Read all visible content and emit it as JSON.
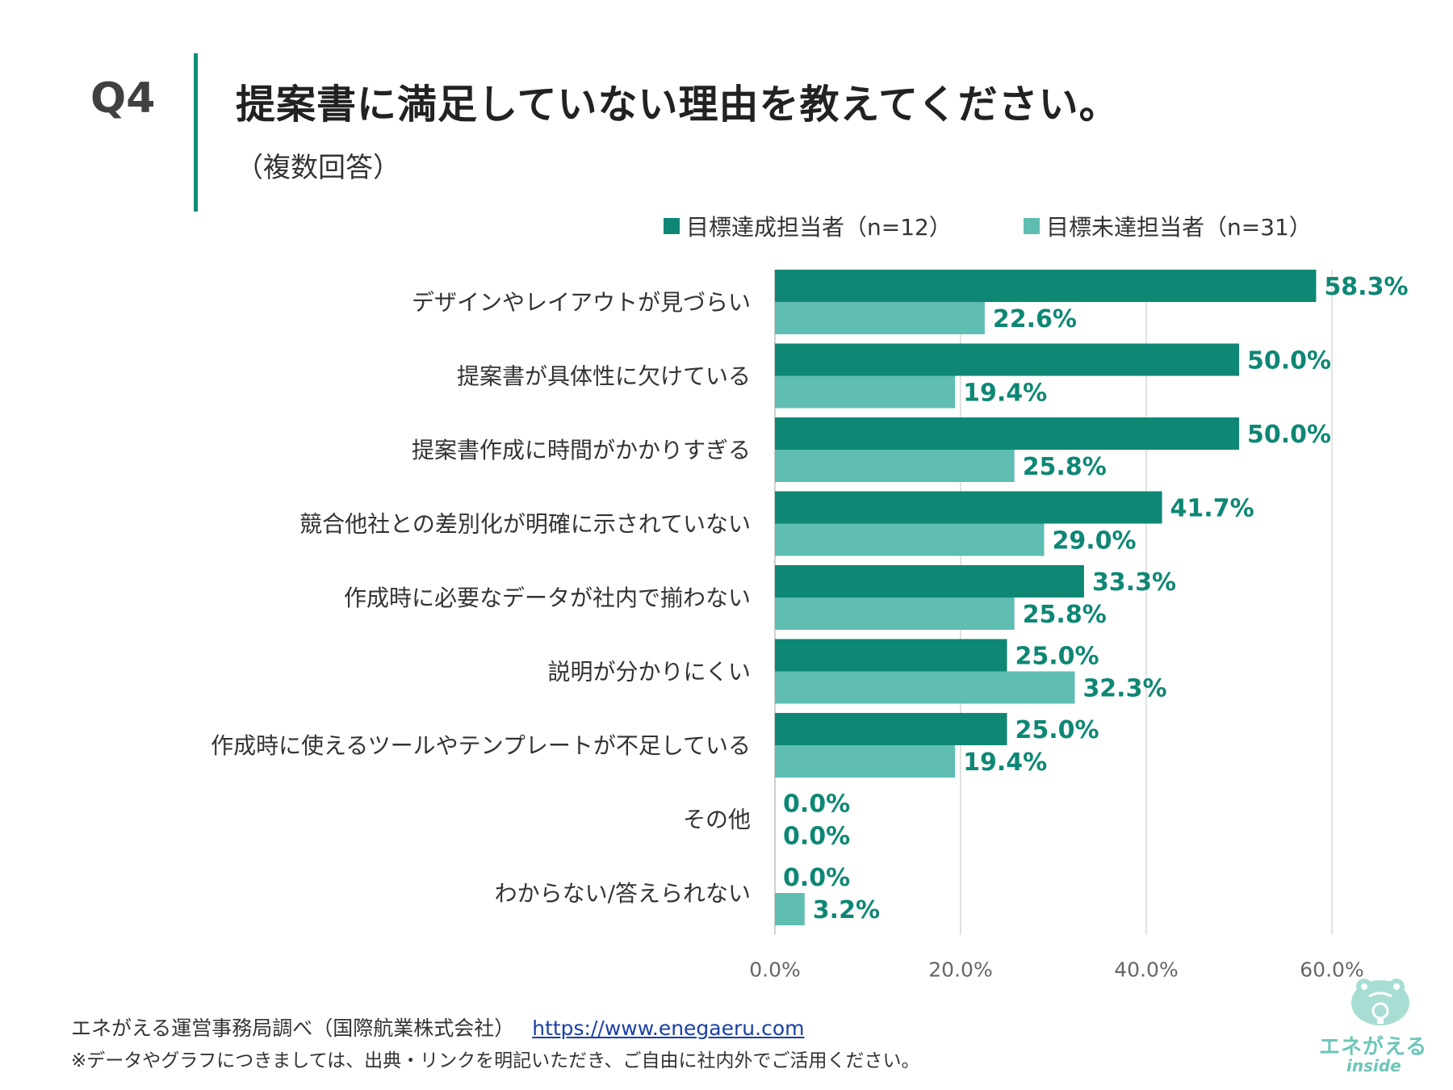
{
  "header": {
    "question": "Q4",
    "title": "提案書に満足していない理由を教えてください。",
    "subtitle": "（複数回答）"
  },
  "legend": {
    "series1": "目標達成担当者（n=12）",
    "series2": "目標未達担当者（n=31）"
  },
  "colors": {
    "series1": "#0e8774",
    "series2": "#5fbdb2",
    "accent": "#0e8c78",
    "label": "#0e8774"
  },
  "chart_data": {
    "type": "bar",
    "orientation": "horizontal",
    "categories": [
      "デザインやレイアウトが見づらい",
      "提案書が具体性に欠けている",
      "提案書作成に時間がかかりすぎる",
      "競合他社との差別化が明確に示されていない",
      "作成時に必要なデータが社内で揃わない",
      "説明が分かりにくい",
      "作成時に使えるツールやテンプレートが不足している",
      "その他",
      "わからない/答えられない"
    ],
    "series": [
      {
        "name": "目標達成担当者（n=12）",
        "values": [
          58.3,
          50.0,
          50.0,
          41.7,
          33.3,
          25.0,
          25.0,
          0.0,
          0.0
        ],
        "labels": [
          "58.3%",
          "50.0%",
          "50.0%",
          "41.7%",
          "33.3%",
          "25.0%",
          "25.0%",
          "0.0%",
          "0.0%"
        ]
      },
      {
        "name": "目標未達担当者（n=31）",
        "values": [
          22.6,
          19.4,
          25.8,
          29.0,
          25.8,
          32.3,
          19.4,
          0.0,
          3.2
        ],
        "labels": [
          "22.6%",
          "19.4%",
          "25.8%",
          "29.0%",
          "25.8%",
          "32.3%",
          "19.4%",
          "0.0%",
          "3.2%"
        ]
      }
    ],
    "xlim": [
      0,
      60
    ],
    "ticks": [
      0,
      20,
      40,
      60
    ],
    "tick_labels": [
      "0.0%",
      "20.0%",
      "40.0%",
      "60.0%"
    ],
    "grid": true,
    "legend_position": "top"
  },
  "footer": {
    "source": "エネがえる運営事務局調べ（国際航業株式会社）",
    "link": "https://www.enegaeru.com",
    "note": "※データやグラフにつきましては、出典・リンクを明記いただき、ご自由に社内外でご活用ください。"
  },
  "logo": {
    "name": "エネがえる",
    "sub": "inside"
  }
}
